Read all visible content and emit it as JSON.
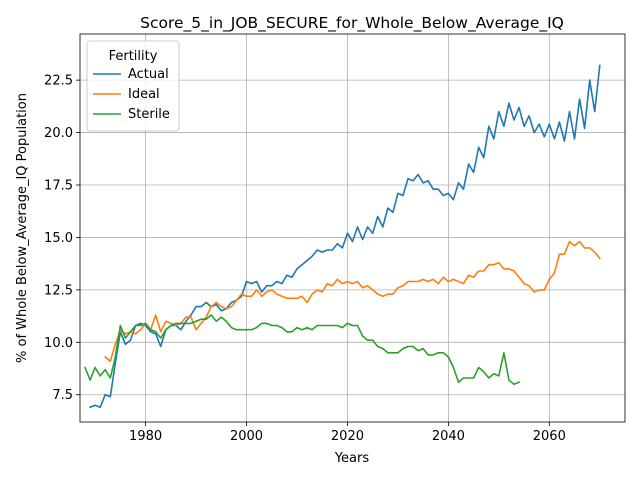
{
  "chart_data": {
    "type": "line",
    "title": "Score_5_in_JOB_SECURE_for_Whole_Below_Average_IQ",
    "xlabel": "Years",
    "ylabel": "% of Whole Below_Average_IQ Population",
    "xlim": [
      1967,
      2075
    ],
    "ylim": [
      6.2,
      24.7
    ],
    "xticks": [
      1980,
      2000,
      2020,
      2040,
      2060
    ],
    "yticks": [
      7.5,
      10.0,
      12.5,
      15.0,
      17.5,
      20.0,
      22.5
    ],
    "ytick_labels": [
      "7.5",
      "10.0",
      "12.5",
      "15.0",
      "17.5",
      "20.0",
      "22.5"
    ],
    "grid": true,
    "legend": {
      "title": "Fertility",
      "placement": "top-left"
    },
    "series": [
      {
        "name": "Actual",
        "color": "#1f77b4",
        "x": [
          1969,
          1970,
          1971,
          1972,
          1973,
          1974,
          1975,
          1976,
          1977,
          1978,
          1979,
          1980,
          1981,
          1982,
          1983,
          1984,
          1985,
          1986,
          1987,
          1988,
          1989,
          1990,
          1991,
          1992,
          1993,
          1994,
          1995,
          1996,
          1997,
          1998,
          1999,
          2000,
          2001,
          2002,
          2003,
          2004,
          2005,
          2006,
          2007,
          2008,
          2009,
          2010,
          2011,
          2012,
          2013,
          2014,
          2015,
          2016,
          2017,
          2018,
          2019,
          2020,
          2021,
          2022,
          2023,
          2024,
          2025,
          2026,
          2027,
          2028,
          2029,
          2030,
          2031,
          2032,
          2033,
          2034,
          2035,
          2036,
          2037,
          2038,
          2039,
          2040,
          2041,
          2042,
          2043,
          2044,
          2045,
          2046,
          2047,
          2048,
          2049,
          2050,
          2051,
          2052,
          2053,
          2054,
          2055,
          2056,
          2057,
          2058,
          2059,
          2060,
          2061,
          2062,
          2063,
          2064,
          2065,
          2066,
          2067,
          2068,
          2069,
          2070
        ],
        "values": [
          6.9,
          7.0,
          6.9,
          7.5,
          7.4,
          9.0,
          10.5,
          9.9,
          10.1,
          10.8,
          10.9,
          10.8,
          10.5,
          10.4,
          9.8,
          10.6,
          10.8,
          10.8,
          10.6,
          11.0,
          11.3,
          11.7,
          11.7,
          11.9,
          11.7,
          11.8,
          11.5,
          11.6,
          11.9,
          12.0,
          12.2,
          12.9,
          12.8,
          12.9,
          12.4,
          12.7,
          12.7,
          12.9,
          12.8,
          13.2,
          13.1,
          13.5,
          13.7,
          13.9,
          14.1,
          14.4,
          14.3,
          14.4,
          14.4,
          14.7,
          14.5,
          15.2,
          14.8,
          15.5,
          14.9,
          15.5,
          15.2,
          16.0,
          15.5,
          16.4,
          16.2,
          17.1,
          17.0,
          17.8,
          17.7,
          18.0,
          17.6,
          17.7,
          17.3,
          17.3,
          17.0,
          17.1,
          16.8,
          17.6,
          17.3,
          18.5,
          18.1,
          19.3,
          18.8,
          20.3,
          19.7,
          21.0,
          20.3,
          21.4,
          20.6,
          21.2,
          20.3,
          20.8,
          20.0,
          20.4,
          19.8,
          20.4,
          19.7,
          20.5,
          19.6,
          21.0,
          19.7,
          21.6,
          20.2,
          22.5,
          21.0,
          23.2
        ]
      },
      {
        "name": "Ideal",
        "color": "#ff7f0e",
        "x": [
          1972,
          1973,
          1974,
          1975,
          1976,
          1977,
          1978,
          1979,
          1980,
          1981,
          1982,
          1983,
          1984,
          1985,
          1986,
          1987,
          1988,
          1989,
          1990,
          1991,
          1992,
          1993,
          1994,
          1995,
          1996,
          1997,
          1998,
          1999,
          2000,
          2001,
          2002,
          2003,
          2004,
          2005,
          2006,
          2007,
          2008,
          2009,
          2010,
          2011,
          2012,
          2013,
          2014,
          2015,
          2016,
          2017,
          2018,
          2019,
          2020,
          2021,
          2022,
          2023,
          2024,
          2025,
          2026,
          2027,
          2028,
          2029,
          2030,
          2031,
          2032,
          2033,
          2034,
          2035,
          2036,
          2037,
          2038,
          2039,
          2040,
          2041,
          2042,
          2043,
          2044,
          2045,
          2046,
          2047,
          2048,
          2049,
          2050,
          2051,
          2052,
          2053,
          2054,
          2055,
          2056,
          2057,
          2058,
          2059,
          2060,
          2061,
          2062,
          2063,
          2064,
          2065,
          2066,
          2067,
          2068,
          2069,
          2070
        ],
        "values": [
          9.3,
          9.1,
          9.9,
          10.6,
          10.4,
          10.5,
          10.4,
          10.6,
          10.9,
          10.6,
          11.3,
          10.5,
          11.0,
          10.9,
          10.8,
          10.9,
          11.2,
          11.2,
          10.6,
          10.9,
          11.2,
          11.7,
          11.9,
          11.7,
          11.6,
          11.7,
          12.0,
          12.3,
          12.2,
          12.2,
          12.5,
          12.2,
          12.4,
          12.5,
          12.3,
          12.2,
          12.1,
          12.1,
          12.1,
          12.2,
          11.9,
          12.3,
          12.5,
          12.4,
          12.8,
          12.7,
          13.0,
          12.8,
          12.9,
          12.8,
          12.9,
          12.6,
          12.7,
          12.5,
          12.3,
          12.2,
          12.3,
          12.3,
          12.6,
          12.7,
          12.9,
          12.9,
          12.9,
          13.0,
          12.9,
          13.0,
          12.8,
          13.1,
          12.9,
          13.0,
          12.9,
          12.8,
          13.2,
          13.1,
          13.4,
          13.4,
          13.7,
          13.7,
          13.8,
          13.5,
          13.5,
          13.4,
          13.1,
          12.8,
          12.7,
          12.4,
          12.5,
          12.5,
          13.0,
          13.3,
          14.2,
          14.2,
          14.8,
          14.6,
          14.8,
          14.5,
          14.5,
          14.3,
          14.0
        ]
      },
      {
        "name": "Sterile",
        "color": "#2ca02c",
        "x": [
          1968,
          1969,
          1970,
          1971,
          1972,
          1973,
          1974,
          1975,
          1976,
          1977,
          1978,
          1979,
          1980,
          1981,
          1982,
          1983,
          1984,
          1985,
          1986,
          1987,
          1988,
          1989,
          1990,
          1991,
          1992,
          1993,
          1994,
          1995,
          1996,
          1997,
          1998,
          1999,
          2000,
          2001,
          2002,
          2003,
          2004,
          2005,
          2006,
          2007,
          2008,
          2009,
          2010,
          2011,
          2012,
          2013,
          2014,
          2015,
          2016,
          2017,
          2018,
          2019,
          2020,
          2021,
          2022,
          2023,
          2024,
          2025,
          2026,
          2027,
          2028,
          2029,
          2030,
          2031,
          2032,
          2033,
          2034,
          2035,
          2036,
          2037,
          2038,
          2039,
          2040,
          2041,
          2042,
          2043,
          2044,
          2045,
          2046,
          2047,
          2048,
          2049,
          2050,
          2051,
          2052,
          2053,
          2054
        ],
        "values": [
          8.8,
          8.2,
          8.8,
          8.4,
          8.7,
          8.3,
          9.3,
          10.8,
          10.2,
          10.5,
          10.8,
          10.8,
          10.9,
          10.6,
          10.5,
          10.2,
          10.6,
          10.8,
          10.9,
          10.9,
          10.9,
          10.9,
          11.0,
          11.1,
          11.1,
          11.3,
          11.0,
          11.2,
          11.0,
          10.7,
          10.6,
          10.6,
          10.6,
          10.6,
          10.7,
          10.9,
          10.9,
          10.8,
          10.8,
          10.7,
          10.5,
          10.5,
          10.7,
          10.6,
          10.7,
          10.6,
          10.8,
          10.8,
          10.8,
          10.8,
          10.8,
          10.7,
          10.9,
          10.8,
          10.8,
          10.3,
          10.1,
          10.1,
          9.8,
          9.7,
          9.5,
          9.5,
          9.5,
          9.7,
          9.8,
          9.8,
          9.6,
          9.7,
          9.4,
          9.4,
          9.5,
          9.5,
          9.3,
          8.8,
          8.1,
          8.3,
          8.3,
          8.3,
          8.8,
          8.6,
          8.3,
          8.5,
          8.4,
          9.5,
          8.2,
          8.0,
          8.1
        ]
      }
    ]
  }
}
